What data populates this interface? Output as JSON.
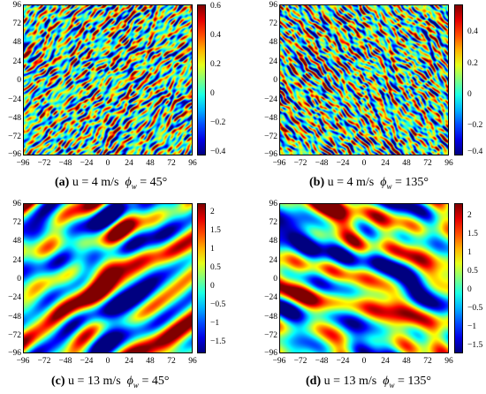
{
  "chart_data": [
    {
      "type": "heatmap",
      "id": "a",
      "caption": {
        "label": "(a)",
        "text_u": "u = 4 m/s",
        "phi": "ϕ",
        "phi_sub": "w",
        "text_angle": "= 45°"
      },
      "x_ticks": [
        "−96",
        "−72",
        "−48",
        "−24",
        "0",
        "24",
        "48",
        "72",
        "96"
      ],
      "y_ticks": [
        "96",
        "72",
        "48",
        "24",
        "0",
        "−24",
        "−48",
        "−72",
        "−96"
      ],
      "xlim": [
        -96,
        96
      ],
      "ylim": [
        -96,
        96
      ],
      "colorbar_ticks": [
        "0.6",
        "0.4",
        "0.2",
        "0",
        "−0.2",
        "−0.4"
      ],
      "colorbar_range": [
        -0.45,
        0.6
      ],
      "wave_direction_deg": 45
    },
    {
      "type": "heatmap",
      "id": "b",
      "caption": {
        "label": "(b)",
        "text_u": "u = 4 m/s",
        "phi": "ϕ",
        "phi_sub": "w",
        "text_angle": "= 135°"
      },
      "x_ticks": [
        "−96",
        "−72",
        "−48",
        "−24",
        "0",
        "24",
        "48",
        "72",
        "96"
      ],
      "y_ticks": [
        "96",
        "72",
        "48",
        "24",
        "0",
        "−24",
        "−48",
        "−72",
        "−96"
      ],
      "xlim": [
        -96,
        96
      ],
      "ylim": [
        -96,
        96
      ],
      "colorbar_ticks": [
        "0.4",
        "0.2",
        "0",
        "−0.2",
        "−0.4"
      ],
      "colorbar_range": [
        -0.45,
        0.5
      ],
      "wave_direction_deg": 135
    },
    {
      "type": "heatmap",
      "id": "c",
      "caption": {
        "label": "(c)",
        "text_u": "u = 13 m/s",
        "phi": "ϕ",
        "phi_sub": "w",
        "text_angle": "= 45°"
      },
      "x_ticks": [
        "−96",
        "−72",
        "−48",
        "−24",
        "0",
        "24",
        "48",
        "72",
        "96"
      ],
      "y_ticks": [
        "96",
        "72",
        "48",
        "24",
        "0",
        "−24",
        "−48",
        "−72",
        "−96"
      ],
      "xlim": [
        -96,
        96
      ],
      "ylim": [
        -96,
        96
      ],
      "colorbar_ticks": [
        "2",
        "1.5",
        "1",
        "0.5",
        "0",
        "−0.5",
        "−1",
        "−1.5"
      ],
      "colorbar_range": [
        -1.8,
        2.2
      ],
      "wave_direction_deg": 45
    },
    {
      "type": "heatmap",
      "id": "d",
      "caption": {
        "label": "(d)",
        "text_u": "u = 13 m/s",
        "phi": "ϕ",
        "phi_sub": "w",
        "text_angle": "= 135°"
      },
      "x_ticks": [
        "−96",
        "−72",
        "−48",
        "−24",
        "0",
        "24",
        "48",
        "72",
        "96"
      ],
      "y_ticks": [
        "96",
        "72",
        "48",
        "24",
        "0",
        "−24",
        "−48",
        "−72",
        "−96"
      ],
      "xlim": [
        -96,
        96
      ],
      "ylim": [
        -96,
        96
      ],
      "colorbar_ticks": [
        "2",
        "1.5",
        "1",
        "0.5",
        "0",
        "−0.5",
        "−1",
        "−1.5"
      ],
      "colorbar_range": [
        -1.8,
        2.3
      ],
      "wave_direction_deg": 135
    }
  ]
}
